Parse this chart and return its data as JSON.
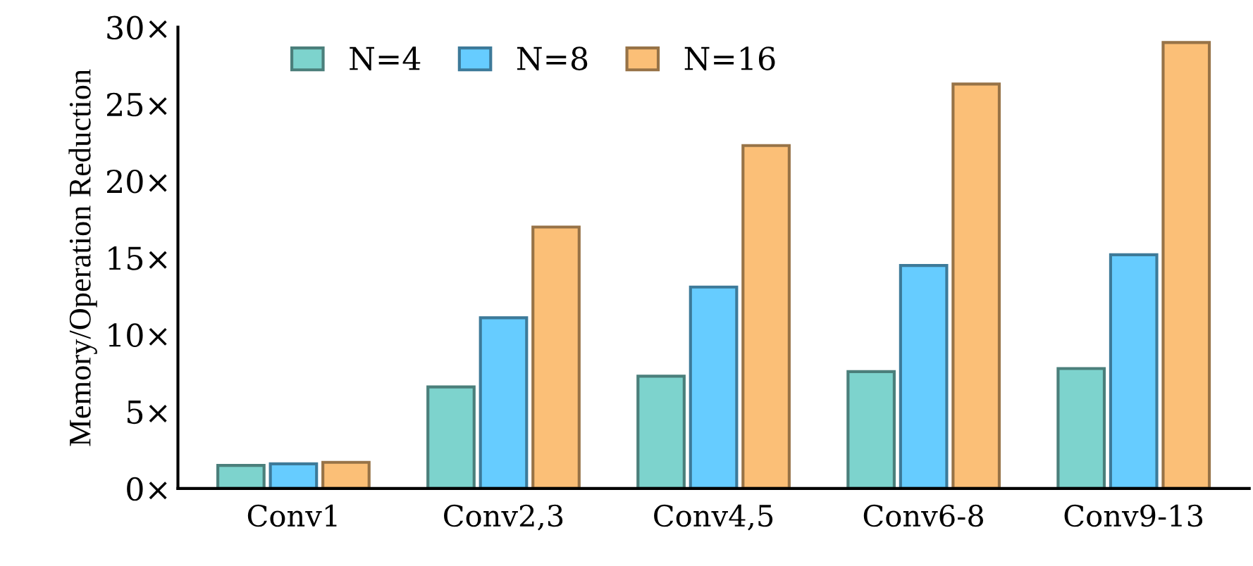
{
  "chart_data": {
    "type": "bar",
    "ylabel": "Memory/Operation Reduction",
    "categories": [
      "Conv1",
      "Conv2,3",
      "Conv4,5",
      "Conv6-8",
      "Conv9-13"
    ],
    "series": [
      {
        "name": "N=4",
        "color": "#7dd3cd",
        "values": [
          1.5,
          6.6,
          7.3,
          7.6,
          7.8
        ]
      },
      {
        "name": "N=8",
        "color": "#66ccff",
        "values": [
          1.6,
          11.1,
          13.1,
          14.5,
          15.2
        ]
      },
      {
        "name": "N=16",
        "color": "#fbbf77",
        "values": [
          1.7,
          17.0,
          22.3,
          26.3,
          29.0
        ]
      }
    ],
    "ylim": [
      0,
      30
    ],
    "yticks": [
      {
        "value": 0,
        "label": "0×"
      },
      {
        "value": 5,
        "label": "5×"
      },
      {
        "value": 10,
        "label": "10×"
      },
      {
        "value": 15,
        "label": "15×"
      },
      {
        "value": 20,
        "label": "20×"
      },
      {
        "value": 25,
        "label": "25×"
      },
      {
        "value": 30,
        "label": "30×"
      }
    ],
    "grid": false,
    "legend": "top left"
  }
}
